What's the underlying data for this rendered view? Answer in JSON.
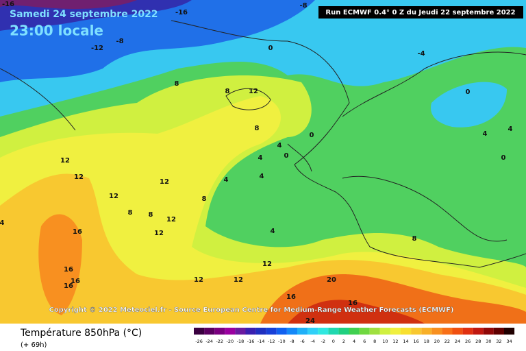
{
  "header": {
    "date": "Samedi 24 septembre 2022",
    "time": "23:00 locale",
    "run": "Run ECMWF 0.4° 0 Z du Jeudi 22 septembre 2022"
  },
  "copyright": "Copyright © 2022 Meteociel.fr - Source European Centre for Medium-Range Weather Forecasts (ECMWF)",
  "footer": {
    "title": "Température 850hPa (°C)",
    "lead": "(+ 69h)"
  },
  "contour_labels": [
    -16,
    -16,
    -8,
    -12,
    -8,
    0,
    -4,
    8,
    8,
    12,
    8,
    0,
    0,
    4,
    4,
    12,
    12,
    12,
    4,
    4,
    8,
    12,
    8,
    8,
    12,
    12,
    16,
    4,
    16,
    16,
    16,
    12,
    12,
    12,
    16,
    20,
    16,
    24,
    8,
    0,
    4,
    4,
    0,
    4
  ],
  "legend": {
    "ticks": [
      -26,
      -24,
      -22,
      -20,
      -18,
      -16,
      -14,
      -12,
      -10,
      -8,
      -6,
      -4,
      -2,
      0,
      2,
      4,
      6,
      8,
      10,
      12,
      14,
      16,
      18,
      20,
      22,
      24,
      26,
      28,
      30,
      32,
      34
    ],
    "colors": [
      "#3a0040",
      "#5a0060",
      "#7a0080",
      "#9a00a0",
      "#6a1aa0",
      "#3a20b0",
      "#2030c0",
      "#1840d8",
      "#1060f0",
      "#1488f8",
      "#20b0f8",
      "#30d0f8",
      "#30e8e0",
      "#20d8b0",
      "#20d080",
      "#40d050",
      "#70d840",
      "#a0e040",
      "#d0f040",
      "#f0f040",
      "#f8e030",
      "#f8c830",
      "#f8b028",
      "#f89020",
      "#f87018",
      "#f05010",
      "#e03010",
      "#c01810",
      "#900808",
      "#600000",
      "#200000"
    ]
  }
}
